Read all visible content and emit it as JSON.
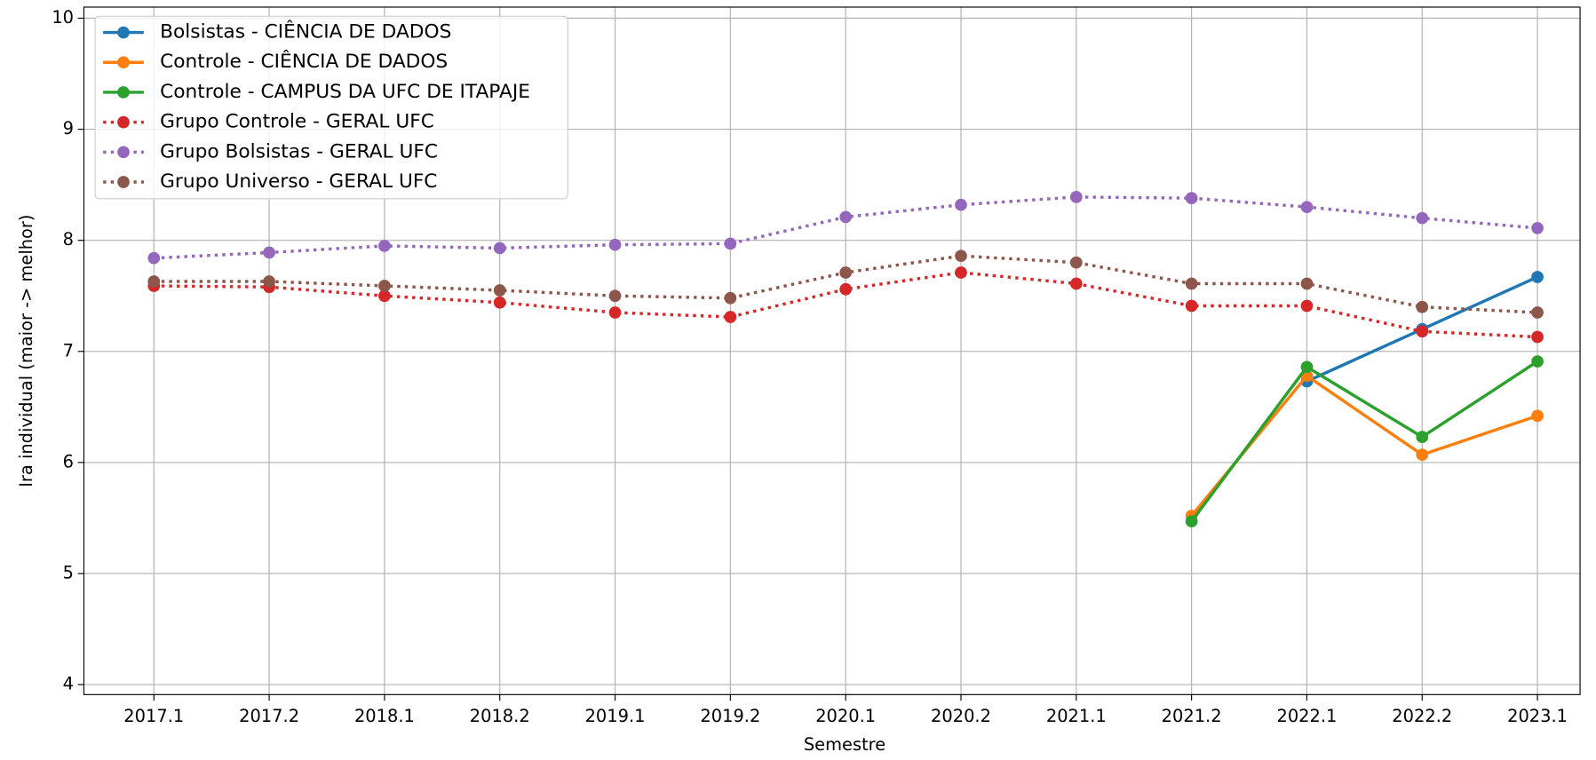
{
  "chart_data": {
    "type": "line",
    "xlabel": "Semestre",
    "ylabel": "Ira individual (maior -> melhor)",
    "categories": [
      "2017.1",
      "2017.2",
      "2018.1",
      "2018.2",
      "2019.1",
      "2019.2",
      "2020.1",
      "2020.2",
      "2021.1",
      "2021.2",
      "2022.1",
      "2022.2",
      "2023.1"
    ],
    "series": [
      {
        "name": "Bolsistas - CIÊNCIA DE DADOS",
        "color": "#1f77b4",
        "linestyle": "solid",
        "values": [
          null,
          null,
          null,
          null,
          null,
          null,
          null,
          null,
          null,
          null,
          6.73,
          7.2,
          7.67
        ]
      },
      {
        "name": "Controle - CIÊNCIA DE DADOS",
        "color": "#ff7f0e",
        "linestyle": "solid",
        "values": [
          null,
          null,
          null,
          null,
          null,
          null,
          null,
          null,
          null,
          5.52,
          6.78,
          6.07,
          6.42
        ]
      },
      {
        "name": "Controle - CAMPUS DA UFC DE ITAPAJE",
        "color": "#2ca02c",
        "linestyle": "solid",
        "values": [
          null,
          null,
          null,
          null,
          null,
          null,
          null,
          null,
          null,
          5.47,
          6.86,
          6.23,
          6.91
        ]
      },
      {
        "name": "Grupo Controle - GERAL UFC",
        "color": "#d62728",
        "linestyle": "dotted",
        "values": [
          7.59,
          7.58,
          7.5,
          7.44,
          7.35,
          7.31,
          7.56,
          7.71,
          7.61,
          7.41,
          7.41,
          7.18,
          7.13
        ]
      },
      {
        "name": "Grupo Bolsistas - GERAL UFC",
        "color": "#9467bd",
        "linestyle": "dotted",
        "values": [
          7.84,
          7.89,
          7.95,
          7.93,
          7.96,
          7.97,
          8.21,
          8.32,
          8.39,
          8.38,
          8.3,
          8.2,
          8.11
        ]
      },
      {
        "name": "Grupo Universo - GERAL UFC",
        "color": "#8c564b",
        "linestyle": "dotted",
        "values": [
          7.63,
          7.63,
          7.59,
          7.55,
          7.5,
          7.48,
          7.71,
          7.86,
          7.8,
          7.61,
          7.61,
          7.4,
          7.35
        ]
      }
    ],
    "ylim": [
      3.91,
      10.1
    ],
    "yticks": [
      4,
      5,
      6,
      7,
      8,
      9,
      10
    ],
    "grid": true,
    "legend": "upper left"
  }
}
